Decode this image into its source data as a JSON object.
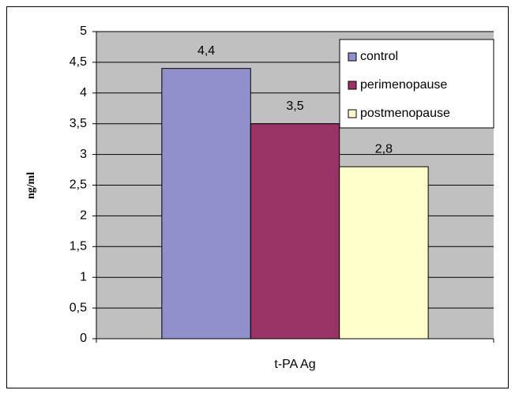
{
  "chart_data": {
    "type": "bar",
    "categories": [
      "t-PA Ag"
    ],
    "series": [
      {
        "name": "control",
        "color": "#9090cc",
        "values": [
          4.4
        ],
        "value_labels": [
          "4,4"
        ]
      },
      {
        "name": "perimenopause",
        "color": "#993366",
        "values": [
          3.5
        ],
        "value_labels": [
          "3,5"
        ]
      },
      {
        "name": "postmenopause",
        "color": "#ffffcc",
        "values": [
          2.8
        ],
        "value_labels": [
          "2,8"
        ]
      }
    ],
    "ylabel": "ng/ml",
    "ylim": [
      0,
      5
    ],
    "yticks": [
      0,
      {
        "value": 0.5,
        "label": "0,5"
      },
      1,
      {
        "value": 1.5,
        "label": "1,5"
      },
      2,
      {
        "value": 2.5,
        "label": "2,5"
      },
      3,
      {
        "value": 3.5,
        "label": "3,5"
      },
      4,
      {
        "value": 4.5,
        "label": "4,5"
      },
      5
    ],
    "grid": true,
    "legend": "upper right"
  }
}
